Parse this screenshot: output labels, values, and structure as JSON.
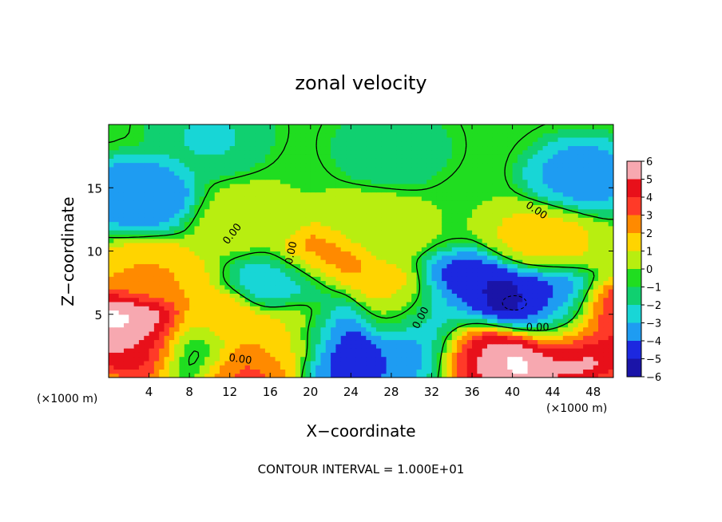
{
  "chart_data": {
    "type": "heatmap",
    "title": "zonal velocity",
    "xlabel": "X−coordinate",
    "ylabel": "Z−coordinate",
    "x_unit_left": "(×1000 m)",
    "x_unit_right": "(×1000 m)",
    "xlim": [
      0,
      50
    ],
    "ylim": [
      0,
      20
    ],
    "x_ticks": [
      4,
      8,
      12,
      16,
      20,
      24,
      28,
      32,
      36,
      40,
      44,
      48
    ],
    "y_ticks": [
      5,
      10,
      15
    ],
    "colorbar": {
      "levels": [
        6,
        5,
        4,
        3,
        2,
        1,
        0,
        -1,
        -2,
        -3,
        -4,
        -5,
        -6
      ],
      "labels": [
        "6",
        "5",
        "4",
        "3",
        "2",
        "1",
        "0",
        "−1",
        "−2",
        "−3",
        "−4",
        "−5",
        "−6"
      ],
      "colors": [
        "#f7a8b0",
        "#e8101a",
        "#ff3a28",
        "#ff8a00",
        "#ffd400",
        "#b8ee10",
        "#20dd20",
        "#10d070",
        "#18d6d6",
        "#1e9cf2",
        "#1c28e0",
        "#1a14a8",
        "#7a1aa0"
      ]
    },
    "contour_label": "0.00",
    "contour_interval_text": "CONTOUR INTERVAL = 1.000E+01",
    "field_sources": [
      {
        "x": 3,
        "z": 14.5,
        "v": -3.5
      },
      {
        "x": 47,
        "z": 16,
        "v": -3
      },
      {
        "x": 28,
        "z": 18,
        "v": -1.2
      },
      {
        "x": 10,
        "z": 19,
        "v": -1.6
      },
      {
        "x": 14,
        "z": 12.5,
        "v": 0.8
      },
      {
        "x": 21,
        "z": 9.2,
        "v": 3.2
      },
      {
        "x": 26,
        "z": 12,
        "v": 1
      },
      {
        "x": 43,
        "z": 11,
        "v": 1.8
      },
      {
        "x": 4,
        "z": 7.8,
        "v": 2.6
      },
      {
        "x": 40,
        "z": 5.8,
        "v": -5.5
      },
      {
        "x": 36,
        "z": 7,
        "v": -4.5
      },
      {
        "x": 43,
        "z": 6,
        "v": -3.5
      },
      {
        "x": 18,
        "z": 7.5,
        "v": -2.8
      },
      {
        "x": 22.5,
        "z": 4,
        "v": -5.5
      },
      {
        "x": 2,
        "z": 4.5,
        "v": 7
      },
      {
        "x": 4,
        "z": 2.6,
        "v": 5.5
      },
      {
        "x": 36,
        "z": 2.3,
        "v": 5.5
      },
      {
        "x": 40,
        "z": 1.8,
        "v": 7
      },
      {
        "x": 46,
        "z": 2.6,
        "v": 6.5
      },
      {
        "x": 49.5,
        "z": 4.5,
        "v": 5
      },
      {
        "x": 13,
        "z": 1,
        "v": 4
      },
      {
        "x": 28,
        "z": 5.8,
        "v": 3
      },
      {
        "x": 31,
        "z": 2.5,
        "v": -3.5
      },
      {
        "x": 24,
        "z": 1.5,
        "v": -4
      },
      {
        "x": 11,
        "z": 4,
        "v": 2.5
      },
      {
        "x": 8.5,
        "z": 2.2,
        "v": -1.5
      },
      {
        "x": 17,
        "z": 2.7,
        "v": 2
      },
      {
        "x": 20,
        "z": 4.5,
        "v": 2.5
      },
      {
        "x": 33,
        "z": 5,
        "v": -2
      },
      {
        "x": 45,
        "z": 4.2,
        "v": -2.5
      },
      {
        "x": 29,
        "z": 4.8,
        "v": -1.5
      }
    ]
  }
}
